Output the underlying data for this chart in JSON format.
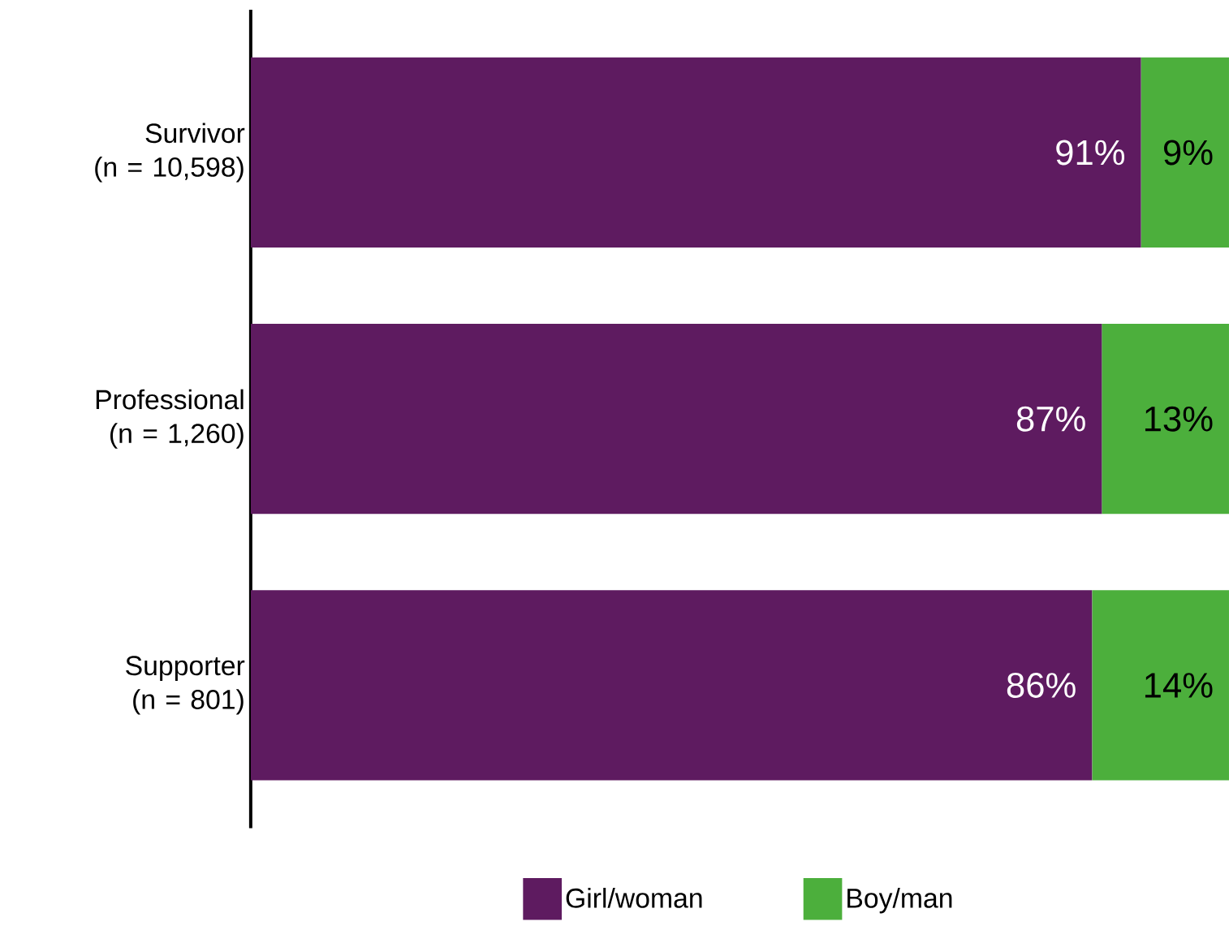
{
  "chart_data": {
    "type": "bar",
    "orientation": "horizontal",
    "stacked": true,
    "categories": [
      "Survivor (n = 10,598)",
      "Professional (n = 1,260)",
      "Supporter (n = 801)"
    ],
    "series": [
      {
        "name": "Girl/woman",
        "color": "#5e1b60",
        "values": [
          91,
          87,
          86
        ],
        "value_labels": [
          "91%",
          "87%",
          "86%"
        ]
      },
      {
        "name": "Boy/man",
        "color": "#4caf3c",
        "values": [
          9,
          13,
          14
        ],
        "value_labels": [
          "9%",
          "13%",
          "14%"
        ]
      }
    ],
    "xlim": [
      0,
      100
    ],
    "tick_labels": "y",
    "legend": "bottom"
  }
}
